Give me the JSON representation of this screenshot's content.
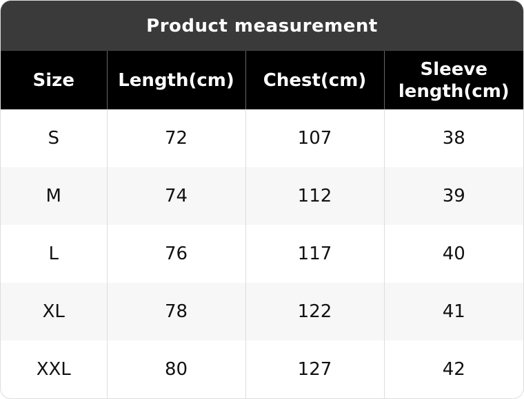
{
  "table": {
    "title": "Product measurement",
    "headers": [
      "Size",
      "Length(cm)",
      "Chest(cm)",
      "Sleeve length(cm)"
    ],
    "rows": [
      [
        "S",
        72,
        107,
        38
      ],
      [
        "M",
        74,
        112,
        39
      ],
      [
        "L",
        76,
        117,
        40
      ],
      [
        "XL",
        78,
        122,
        41
      ],
      [
        "XXL",
        80,
        127,
        42
      ]
    ]
  }
}
